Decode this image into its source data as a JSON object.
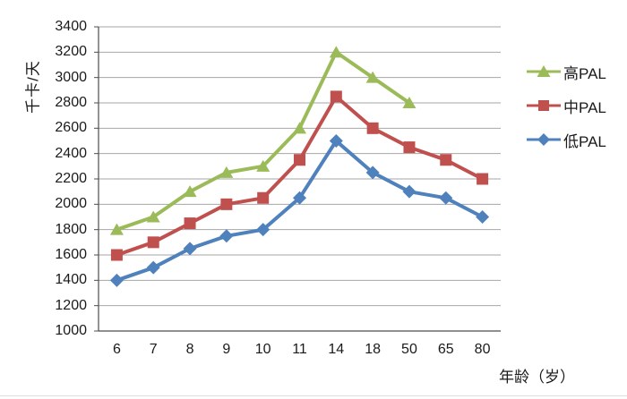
{
  "chart_data": {
    "type": "line",
    "title": "",
    "ylabel": "千卡/天",
    "xlabel": "年龄（岁）",
    "x_categories": [
      "6",
      "7",
      "8",
      "9",
      "10",
      "11",
      "14",
      "18",
      "50",
      "65",
      "80"
    ],
    "ylim": [
      1000,
      3400
    ],
    "ytick_step": 200,
    "grid": true,
    "legend_position": "right",
    "series": [
      {
        "name": "高PAL",
        "marker": "triangle",
        "color": "#9BBB59",
        "values": [
          1800,
          1900,
          2100,
          2250,
          2300,
          2600,
          3200,
          3000,
          2800,
          null,
          null
        ]
      },
      {
        "name": "中PAL",
        "marker": "square",
        "color": "#C0504D",
        "values": [
          1600,
          1700,
          1850,
          2000,
          2050,
          2350,
          2850,
          2600,
          2450,
          2350,
          2200
        ]
      },
      {
        "name": "低PAL",
        "marker": "diamond",
        "color": "#4F81BD",
        "values": [
          1400,
          1500,
          1650,
          1750,
          1800,
          2050,
          2500,
          2250,
          2100,
          2050,
          1900
        ]
      }
    ]
  },
  "colors": {
    "background": "#FFFFFF",
    "gridline": "#A6A6A6",
    "axis": "#4D4D4D",
    "text": "#1A1A1A"
  }
}
